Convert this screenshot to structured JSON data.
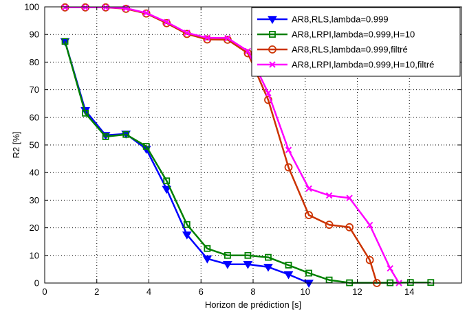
{
  "chart_data": {
    "type": "line",
    "title": "",
    "xlabel": "Horizon de prédiction [s]",
    "ylabel": "R2 [%]",
    "xlim": [
      0,
      16
    ],
    "ylim": [
      0,
      100
    ],
    "xticks": [
      0,
      2,
      4,
      6,
      8,
      10,
      12,
      14
    ],
    "yticks": [
      0,
      10,
      20,
      30,
      40,
      50,
      60,
      70,
      80,
      90,
      100
    ],
    "grid": true,
    "legend_position": "top-right",
    "series": [
      {
        "name": "AR8,RLS,lambda=0.999",
        "color": "#0000ff",
        "marker": "triangle-down",
        "x": [
          0.78,
          1.56,
          2.34,
          3.12,
          3.9,
          4.68,
          5.46,
          6.24,
          7.02,
          7.8,
          8.58,
          9.36,
          10.14
        ],
        "y": [
          87.5,
          62.5,
          53.5,
          54,
          48.5,
          34,
          17.5,
          8.8,
          6.8,
          6.8,
          5.8,
          3.1,
          0
        ]
      },
      {
        "name": "AR8,LRPI,lambda=0.999,H=10",
        "color": "#008000",
        "marker": "square",
        "x": [
          0.78,
          1.56,
          2.34,
          3.12,
          3.9,
          4.68,
          5.46,
          6.24,
          7.02,
          7.8,
          8.58,
          9.36,
          10.14,
          10.92,
          11.7,
          13.26,
          14.04,
          14.82
        ],
        "y": [
          87.5,
          61.5,
          53,
          53.8,
          49.5,
          37,
          21.2,
          12.5,
          10,
          10,
          9.3,
          6.5,
          3.6,
          1.1,
          0.1,
          0.1,
          0.2,
          0.2
        ]
      },
      {
        "name": "AR8,RLS,lambda=0.999,filtré",
        "color": "#cc3300",
        "marker": "circle",
        "x": [
          0.78,
          1.56,
          2.34,
          3.12,
          3.9,
          4.68,
          5.46,
          6.24,
          7.02,
          7.8,
          8.58,
          9.36,
          10.14,
          10.92,
          11.7,
          12.48,
          12.75
        ],
        "y": [
          99.8,
          99.8,
          99.8,
          99.3,
          97.6,
          94.1,
          90.2,
          88.2,
          88.1,
          83.2,
          66.3,
          41.9,
          24.6,
          21.1,
          20.2,
          8.3,
          0
        ]
      },
      {
        "name": "AR8,LRPI,lambda=0.999,H=10,filtré",
        "color": "#ff00ff",
        "marker": "x",
        "x": [
          0.78,
          1.56,
          2.34,
          3.12,
          3.9,
          4.68,
          5.46,
          6.24,
          7.02,
          7.8,
          8.58,
          9.36,
          10.14,
          10.92,
          11.7,
          12.48,
          13.26,
          13.6
        ],
        "y": [
          99.8,
          99.8,
          99.8,
          99.5,
          97.8,
          94.5,
          90.6,
          88.8,
          88.7,
          84,
          68.8,
          48.2,
          34.2,
          31.7,
          30.8,
          21,
          5.3,
          0
        ]
      }
    ]
  }
}
